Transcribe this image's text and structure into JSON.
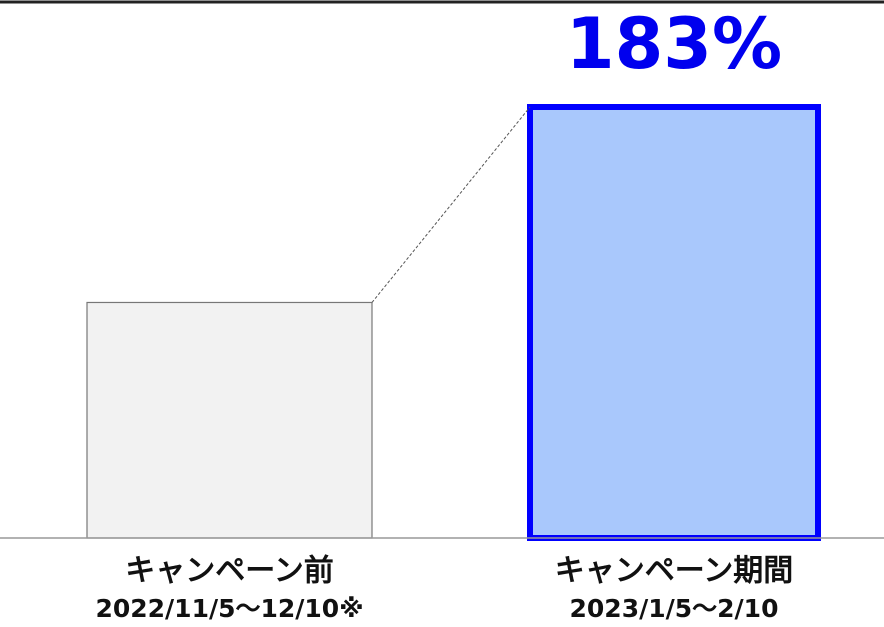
{
  "chart_data": {
    "type": "bar",
    "categories": [
      "キャンペーン前",
      "キャンペーン期間"
    ],
    "periods": [
      "2022/11/5～12/10※",
      "2023/1/5～2/10"
    ],
    "values": [
      100,
      183
    ],
    "value_labels": [
      null,
      "183%"
    ],
    "colors": [
      "#f2f2f2",
      "#a9c8fc"
    ],
    "edge_colors": [
      "#777777",
      "#0000ff"
    ],
    "connector": true
  }
}
